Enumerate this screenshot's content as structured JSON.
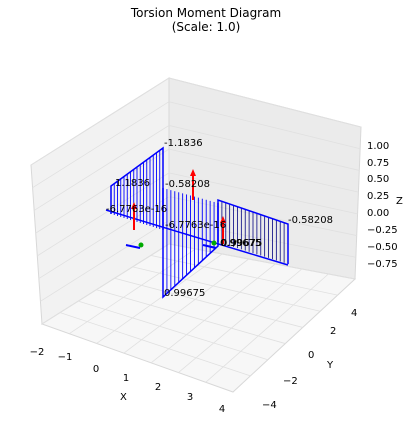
{
  "chart_data": {
    "type": "3d-line",
    "title": "Torsion Moment Diagram",
    "subtitle": "(Scale: 1.0)",
    "xlabel": "X",
    "ylabel": "Y",
    "zlabel": "Z",
    "x_ticks": [
      "−2",
      "−1",
      "0",
      "1",
      "2",
      "3",
      "4"
    ],
    "y_ticks": [
      "−4",
      "−2",
      "0",
      "2",
      "4"
    ],
    "z_ticks": [
      "1.00",
      "0.75",
      "0.50",
      "0.25",
      "0.00",
      "−0.25",
      "−0.50",
      "−0.75"
    ],
    "xlim": [
      -2.2,
      4.2
    ],
    "ylim": [
      -4.3,
      5.2
    ],
    "zlim": [
      -0.9,
      1.25
    ],
    "grid": true,
    "colors": {
      "diagram": "#0000ff",
      "arrow": "#ff0000",
      "node": "#00aa00"
    },
    "annotations": [
      "-1.1836",
      "1.1836",
      "-0.58208",
      "-6.7763e-16",
      "-6.7763e-16",
      "0.99675",
      "0.99675",
      "-0.58208",
      "0.99675"
    ],
    "values": [
      -1.1836,
      1.1836,
      -0.58208,
      -6.7763e-16,
      0.99675
    ]
  }
}
